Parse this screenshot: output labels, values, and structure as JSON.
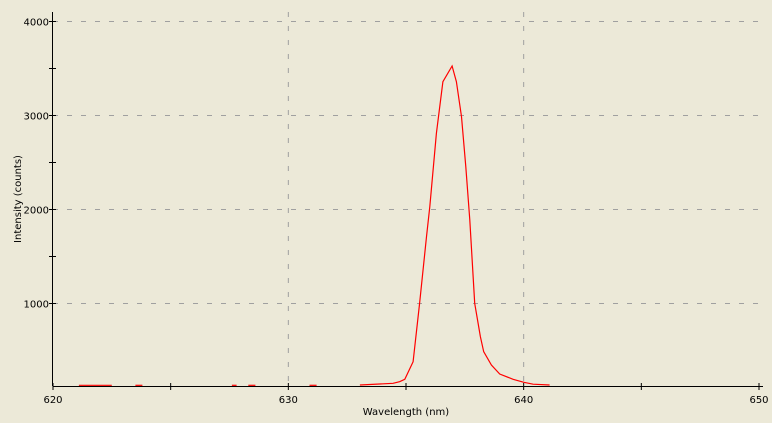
{
  "chart_data": {
    "type": "line",
    "title": "",
    "xlabel": "Wavelength (nm)",
    "ylabel": "Intensity (counts)",
    "xlim": [
      620,
      650
    ],
    "ylim": [
      125,
      4100
    ],
    "x_ticks": [
      620,
      630,
      640,
      650
    ],
    "y_ticks": [
      1000,
      2000,
      3000,
      4000
    ],
    "x_tick_labels": [
      "620",
      "630",
      "640",
      "650"
    ],
    "y_tick_labels": [
      "1000",
      "2000",
      "3000",
      "4000"
    ],
    "grid": true,
    "grid_style": "dashed",
    "colors": {
      "background": "#ECE9D8",
      "series": "#FF0000",
      "grid": "#A0A0A0",
      "axis": "#000000"
    },
    "series": [
      {
        "x": [
          621.1,
          622.5,
          622.6,
          623.4,
          623.5,
          623.8,
          623.9,
          627.5,
          627.6,
          627.8,
          627.9,
          628.2,
          628.3,
          628.6,
          628.7,
          630.8,
          630.9,
          631.2,
          631.3,
          633.0,
          633.04,
          634.45,
          634.73,
          634.95,
          635.3,
          635.58,
          635.87,
          636.01,
          636.29,
          636.57,
          636.96,
          637.14,
          637.36,
          637.54,
          637.71,
          637.92,
          638.16,
          638.3,
          638.63,
          638.98,
          639.55,
          640.01,
          640.4,
          641.1
        ],
        "y": [
          130,
          130,
          110,
          110,
          130,
          130,
          110,
          110,
          130,
          130,
          110,
          110,
          130,
          130,
          110,
          110,
          130,
          130,
          110,
          110,
          133,
          151,
          168,
          194,
          381,
          1002,
          1711,
          2030,
          2811,
          3360,
          3527,
          3360,
          2987,
          2455,
          1888,
          1002,
          647,
          487,
          346,
          250,
          194,
          162,
          141,
          133
        ]
      }
    ]
  }
}
